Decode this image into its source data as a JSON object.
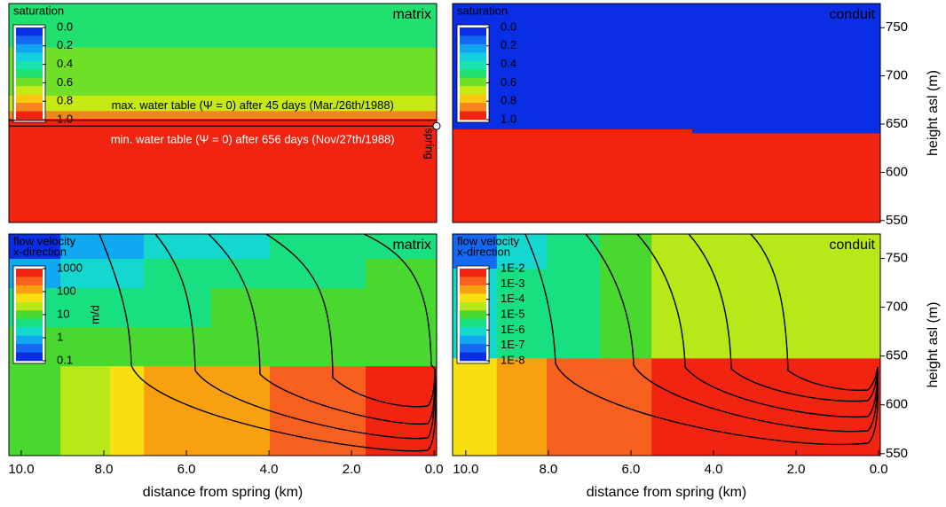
{
  "chart_data": [
    {
      "type": "heatmap",
      "title": "matrix",
      "colorbar": {
        "title": [
          "saturation"
        ],
        "clim": [
          0,
          1
        ],
        "log": false,
        "colors": [
          "#0a2ee6",
          "#1468f2",
          "#10a4f0",
          "#14cfe0",
          "#18e4b0",
          "#20e070",
          "#6ee028",
          "#c8e814",
          "#f8c810",
          "#f88420",
          "#f02410"
        ],
        "ticks": [
          {
            "value": 0,
            "label": "0.0"
          },
          0.2,
          0.4,
          0.6,
          0.8,
          {
            "value": 1,
            "label": "1.0"
          }
        ]
      },
      "x_edges": [
        10.3,
        -0.06
      ],
      "y_edges": [
        548,
        648,
        656,
        664,
        680,
        700,
        730,
        775
      ],
      "values": [
        [
          1
        ],
        [
          0.92
        ],
        [
          0.82
        ],
        [
          0.72
        ],
        [
          0.62
        ],
        [
          0.55
        ],
        [
          0.48
        ]
      ],
      "xlim": [
        10.3,
        -0.06
      ],
      "ylim": [
        548,
        775
      ],
      "annotations": [
        {
          "text": "max. water table (Ψ = 0) after 45 days (Mar./26th/1988)",
          "height": 654
        },
        {
          "text": "min. water table (Ψ = 0) after 656 days (Nov/27th/1988)",
          "height": 648
        }
      ],
      "spring_label": "spring"
    },
    {
      "type": "heatmap",
      "title": "conduit",
      "colorbar": {
        "title": [
          "saturation"
        ],
        "clim": [
          0,
          1
        ],
        "log": false,
        "colors": [
          "#0a2ee6",
          "#1468f2",
          "#10a4f0",
          "#14cfe0",
          "#18e4b0",
          "#20e070",
          "#6ee028",
          "#c8e814",
          "#f8c810",
          "#f88420",
          "#f02410"
        ],
        "ticks": [
          {
            "value": 0,
            "label": "0.0"
          },
          0.2,
          0.4,
          0.6,
          0.8,
          {
            "value": 1,
            "label": "1.0"
          }
        ]
      },
      "x_edges": [
        10.3,
        4.5,
        -0.06
      ],
      "y_edges": [
        548,
        641,
        645,
        775
      ],
      "values": [
        [
          1,
          1
        ],
        [
          1,
          0
        ],
        [
          0,
          0
        ]
      ],
      "xlim": [
        10.3,
        -0.06
      ],
      "ylim": [
        548,
        775
      ],
      "yticks": [
        550,
        600,
        650,
        700,
        750
      ],
      "ylabel": "height asl (m)"
    },
    {
      "type": "heatmap",
      "title": "matrix",
      "colorbar": {
        "title": [
          "flow velocity",
          "x-direction"
        ],
        "unit": "m/d",
        "clim": [
          1000,
          0.1
        ],
        "log": true,
        "colors": [
          "#f02410",
          "#f86020",
          "#f8a010",
          "#f8e010",
          "#b8e818",
          "#48d830",
          "#18e080",
          "#14d8d0",
          "#10a8f0",
          "#1468f2",
          "#0a2ee6"
        ],
        "ticks": [
          1000,
          100,
          10,
          1,
          0.1
        ]
      },
      "x_edges": [
        10.3,
        9.05,
        7.85,
        7.03,
        5.4,
        3.98,
        1.66,
        -0.06
      ],
      "y_edges": [
        548,
        640,
        680,
        720,
        750,
        775
      ],
      "values": [
        [
          15,
          30,
          50,
          100,
          150,
          300,
          500
        ],
        [
          8,
          8,
          10,
          10,
          10,
          12,
          15
        ],
        [
          3,
          4,
          5,
          6,
          8,
          10,
          10
        ],
        [
          0.8,
          1.5,
          2,
          3,
          4,
          5,
          8
        ],
        [
          0.2,
          0.6,
          1,
          1.5,
          2,
          3,
          5
        ]
      ],
      "xlim": [
        10.3,
        -0.06
      ],
      "ylim": [
        548,
        775
      ],
      "xticks": [
        {
          "value": 10,
          "label": "10.0"
        },
        {
          "value": 8,
          "label": "8.0"
        },
        {
          "value": 6,
          "label": "6.0"
        },
        {
          "value": 4,
          "label": "4.0"
        },
        {
          "value": 2,
          "label": "2.0"
        },
        {
          "value": 0,
          "label": "0.0"
        }
      ],
      "xlabel": "distance from spring (km)"
    },
    {
      "type": "heatmap",
      "title": "conduit",
      "colorbar": {
        "title": [
          "flow velocity",
          "x-direction"
        ],
        "clim": [
          0.01,
          1e-08
        ],
        "log": true,
        "colors": [
          "#f02410",
          "#f86020",
          "#f8a010",
          "#f8e010",
          "#b8e818",
          "#48d830",
          "#18e080",
          "#14d8d0",
          "#10a8f0",
          "#1468f2",
          "#0a2ee6"
        ],
        "ticks": [
          {
            "value": 0.01,
            "label": "1E-2"
          },
          {
            "value": 0.001,
            "label": "1E-3"
          },
          {
            "value": 0.0001,
            "label": "1E-4"
          },
          {
            "value": 1e-05,
            "label": "1E-5"
          },
          {
            "value": 1e-06,
            "label": "1E-6"
          },
          {
            "value": 1e-07,
            "label": "1E-7"
          },
          {
            "value": 1e-08,
            "label": "1E-8"
          }
        ]
      },
      "x_edges": [
        10.32,
        9.25,
        8.04,
        6.75,
        5.5,
        3.9,
        1.55,
        -0.04
      ],
      "y_edges": [
        548,
        648,
        740,
        775
      ],
      "values": [
        [
          0.0002,
          0.0005,
          0.001,
          0.002,
          0.003,
          0.005,
          0.008
        ],
        [
          5e-07,
          2e-06,
          5e-06,
          1e-05,
          2e-05,
          3e-05,
          5e-05
        ],
        [
          1e-07,
          1e-06,
          5e-06,
          1e-05,
          2e-05,
          3e-05,
          5e-05
        ]
      ],
      "xlim": [
        10.32,
        -0.04
      ],
      "ylim": [
        548,
        775
      ],
      "xticks": [
        {
          "value": 10,
          "label": "10.0"
        },
        {
          "value": 8,
          "label": "8.0"
        },
        {
          "value": 6,
          "label": "6.0"
        },
        {
          "value": 4,
          "label": "4.0"
        },
        {
          "value": 2,
          "label": "2.0"
        },
        {
          "value": 0,
          "label": "0.0"
        }
      ],
      "xlabel": "distance from spring (km)",
      "yticks": [
        550,
        600,
        650,
        700,
        750
      ],
      "ylabel": "height asl (m)"
    }
  ]
}
